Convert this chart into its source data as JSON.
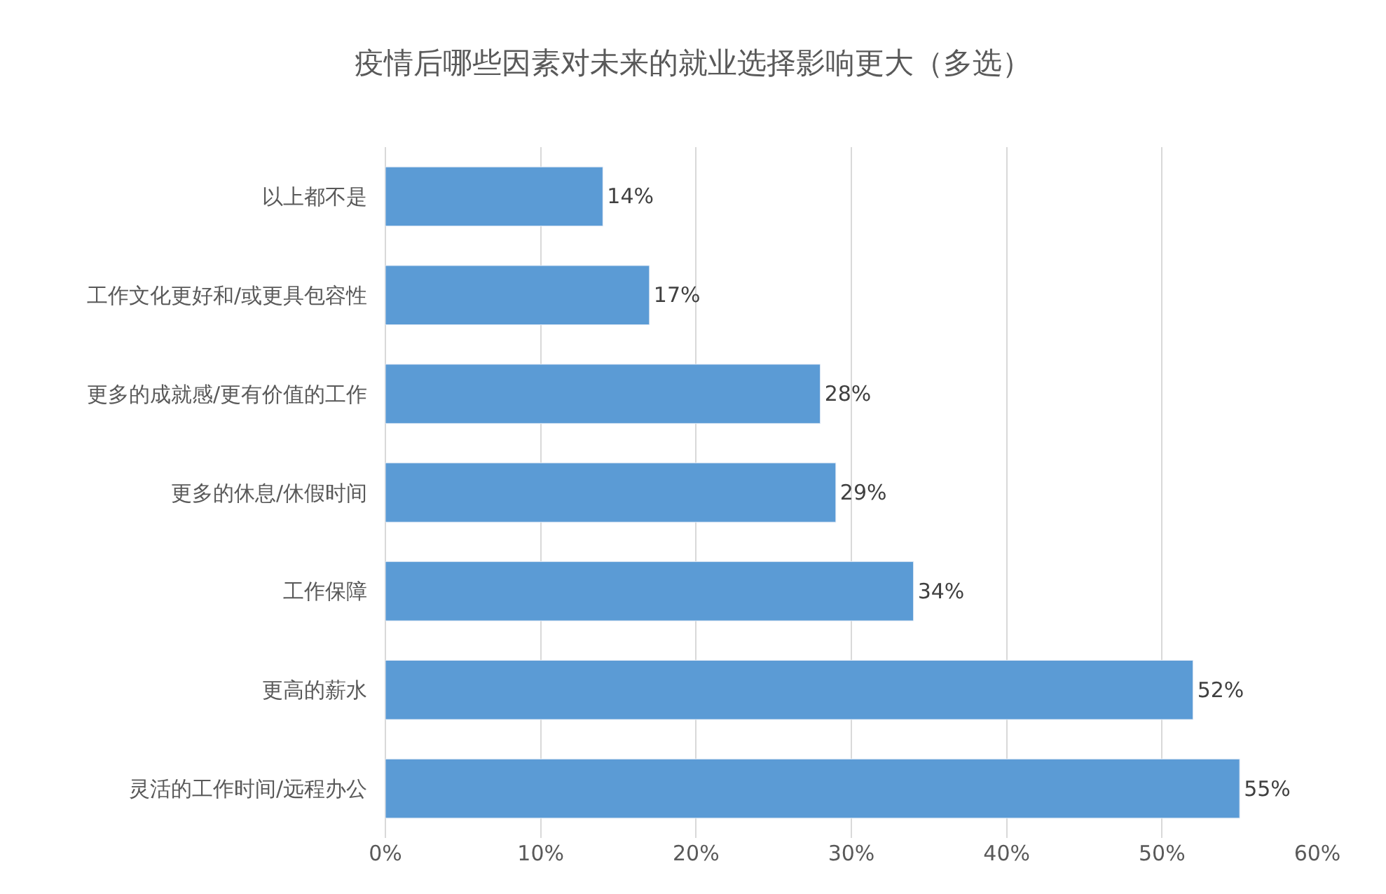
{
  "chart_data": {
    "type": "bar",
    "orientation": "horizontal",
    "title": "疫情后哪些因素对未来的就业选择影响更大（多选）",
    "categories": [
      "以上都不是",
      "工作文化更好和/或更具包容性",
      "更多的成就感/更有价值的工作",
      "更多的休息/休假时间",
      "工作保障",
      "更高的薪水",
      "灵活的工作时间/远程办公"
    ],
    "values": [
      14,
      17,
      28,
      29,
      34,
      52,
      55
    ],
    "value_labels": [
      "14%",
      "17%",
      "28%",
      "29%",
      "34%",
      "52%",
      "55%"
    ],
    "color": "#5b9bd5",
    "xlim": [
      0,
      60
    ],
    "xticks": [
      {
        "value": 0,
        "label": "0%"
      },
      {
        "value": 10,
        "label": "10%"
      },
      {
        "value": 20,
        "label": "20%"
      },
      {
        "value": 30,
        "label": "30%"
      },
      {
        "value": 40,
        "label": "40%"
      },
      {
        "value": 50,
        "label": "50%"
      },
      {
        "value": 60,
        "label": "60%"
      }
    ],
    "grid": "x"
  }
}
